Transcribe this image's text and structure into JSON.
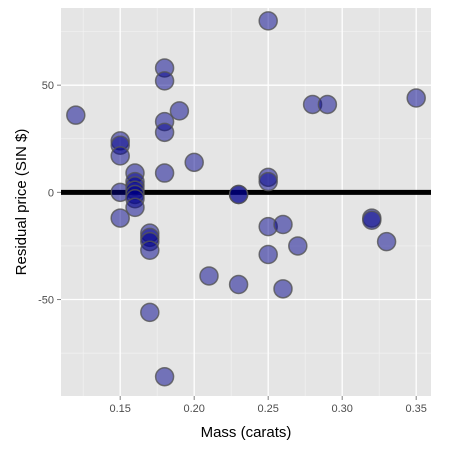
{
  "chart_data": {
    "type": "scatter",
    "title": "",
    "xlabel": "Mass (carats)",
    "ylabel": "Residual price (SIN $)",
    "xlim": [
      0.11,
      0.36
    ],
    "ylim": [
      -95,
      86
    ],
    "x_ticks": [
      0.15,
      0.2,
      0.25,
      0.3,
      0.35
    ],
    "x_tick_labels": [
      "0.15",
      "0.20",
      "0.25",
      "0.30",
      "0.35"
    ],
    "x_minor_ticks": [
      0.125,
      0.175,
      0.225,
      0.275,
      0.325
    ],
    "y_ticks": [
      -50,
      0,
      50
    ],
    "y_tick_labels": [
      "-50",
      "0",
      "50"
    ],
    "y_minor_ticks": [
      -75,
      -25,
      25,
      75
    ],
    "grid": true,
    "reference_line": {
      "y": 0,
      "color": "#000000"
    },
    "colors": {
      "panel_background": "#e5e5e5",
      "grid": "#ffffff",
      "point_fill": "#00008b",
      "point_stroke": "#555555"
    },
    "point_opacity": 0.5,
    "points": [
      {
        "x": 0.12,
        "y": 36
      },
      {
        "x": 0.15,
        "y": 24
      },
      {
        "x": 0.15,
        "y": 22
      },
      {
        "x": 0.15,
        "y": 17
      },
      {
        "x": 0.15,
        "y": 0
      },
      {
        "x": 0.15,
        "y": -12
      },
      {
        "x": 0.16,
        "y": 9
      },
      {
        "x": 0.16,
        "y": 5
      },
      {
        "x": 0.16,
        "y": 3
      },
      {
        "x": 0.16,
        "y": 1
      },
      {
        "x": 0.16,
        "y": -1
      },
      {
        "x": 0.16,
        "y": -3
      },
      {
        "x": 0.16,
        "y": -7
      },
      {
        "x": 0.17,
        "y": -19
      },
      {
        "x": 0.17,
        "y": -21
      },
      {
        "x": 0.17,
        "y": -23
      },
      {
        "x": 0.17,
        "y": -27
      },
      {
        "x": 0.17,
        "y": -56
      },
      {
        "x": 0.18,
        "y": 58
      },
      {
        "x": 0.18,
        "y": 52
      },
      {
        "x": 0.18,
        "y": 33
      },
      {
        "x": 0.18,
        "y": 28
      },
      {
        "x": 0.18,
        "y": 9
      },
      {
        "x": 0.18,
        "y": -86
      },
      {
        "x": 0.19,
        "y": 38
      },
      {
        "x": 0.2,
        "y": 14
      },
      {
        "x": 0.21,
        "y": -39
      },
      {
        "x": 0.23,
        "y": -1
      },
      {
        "x": 0.23,
        "y": -1
      },
      {
        "x": 0.23,
        "y": -43
      },
      {
        "x": 0.25,
        "y": 80
      },
      {
        "x": 0.25,
        "y": 7
      },
      {
        "x": 0.25,
        "y": 5
      },
      {
        "x": 0.25,
        "y": -16
      },
      {
        "x": 0.25,
        "y": -29
      },
      {
        "x": 0.26,
        "y": -15
      },
      {
        "x": 0.26,
        "y": -45
      },
      {
        "x": 0.27,
        "y": -25
      },
      {
        "x": 0.28,
        "y": 41
      },
      {
        "x": 0.29,
        "y": 41
      },
      {
        "x": 0.32,
        "y": -12
      },
      {
        "x": 0.32,
        "y": -13
      },
      {
        "x": 0.33,
        "y": -23
      },
      {
        "x": 0.35,
        "y": 44
      }
    ]
  }
}
